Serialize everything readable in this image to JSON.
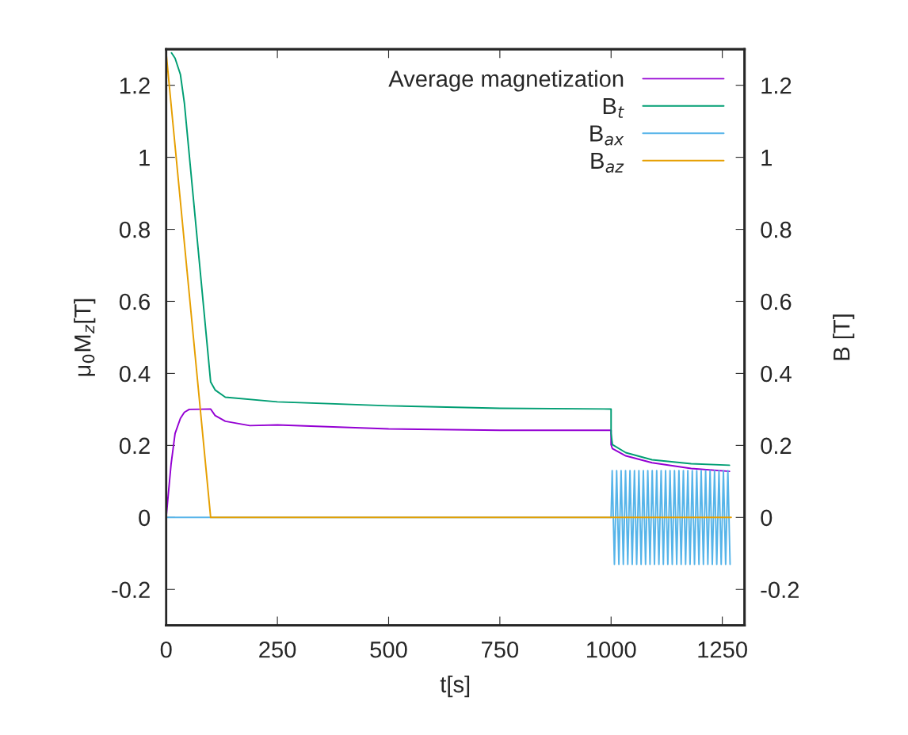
{
  "chart_data": {
    "type": "line",
    "xlabel": "t[s]",
    "ylabel": "μ$_{0}$M$_{z}$[T]",
    "y2label": "B [T]",
    "xlim": [
      0,
      1300
    ],
    "xticks": [
      0,
      250,
      500,
      750,
      1000,
      1250
    ],
    "ylim": [
      -0.3,
      1.3
    ],
    "yticks": [
      -0.2,
      0,
      0.2,
      0.4,
      0.6,
      0.8,
      1,
      1.2
    ],
    "y2lim": [
      -0.3,
      1.3
    ],
    "y2ticks": [
      -0.2,
      0,
      0.2,
      0.4,
      0.6,
      0.8,
      1,
      1.2
    ],
    "legend": "top right",
    "grid": false,
    "line_style": "solid",
    "marker": "none",
    "series": [
      {
        "name": "Average magnetization",
        "color": "#9400d3",
        "x": [
          0,
          11,
          20,
          32,
          41,
          52,
          100,
          110,
          133,
          188,
          250,
          500,
          750,
          1000,
          1000,
          1003,
          1033,
          1092,
          1180,
          1266
        ],
        "values": [
          0,
          0.147,
          0.233,
          0.275,
          0.292,
          0.3,
          0.301,
          0.283,
          0.267,
          0.255,
          0.257,
          0.246,
          0.242,
          0.242,
          0.202,
          0.191,
          0.171,
          0.152,
          0.136,
          0.128
        ]
      },
      {
        "name": "B$_{t}$",
        "color": "#009e73",
        "x": [
          12,
          20,
          32,
          41,
          100,
          110,
          133,
          250,
          500,
          750,
          1000,
          1000,
          1003,
          1033,
          1092,
          1180,
          1266
        ],
        "values": [
          1.29,
          1.275,
          1.23,
          1.15,
          0.376,
          0.354,
          0.334,
          0.321,
          0.31,
          0.303,
          0.301,
          0.233,
          0.202,
          0.18,
          0.16,
          0.149,
          0.145
        ]
      },
      {
        "name": "B$_{ax}$",
        "color": "#56b4e9",
        "x": [
          0,
          1000,
          1002.5,
          1007.5,
          1012.5,
          1017.5,
          1022.5,
          1027.5,
          1032.5,
          1037.5,
          1042.5,
          1047.5,
          1052.5,
          1057.5,
          1062.5,
          1067.5,
          1072.5,
          1077.5,
          1082.5,
          1087.5,
          1092.5,
          1097.5,
          1102.5,
          1107.5,
          1112.5,
          1117.5,
          1122.5,
          1127.5,
          1132.5,
          1137.5,
          1142.5,
          1147.5,
          1152.5,
          1157.5,
          1162.5,
          1167.5,
          1172.5,
          1177.5,
          1182.5,
          1187.5,
          1192.5,
          1197.5,
          1202.5,
          1207.5,
          1212.5,
          1217.5,
          1222.5,
          1227.5,
          1232.5,
          1237.5,
          1242.5,
          1247.5,
          1252.5,
          1257.5,
          1262.5,
          1267.5
        ],
        "values": [
          0,
          0,
          0.13,
          -0.13,
          0.13,
          -0.13,
          0.13,
          -0.13,
          0.13,
          -0.13,
          0.13,
          -0.13,
          0.13,
          -0.13,
          0.13,
          -0.13,
          0.13,
          -0.13,
          0.13,
          -0.13,
          0.13,
          -0.13,
          0.13,
          -0.13,
          0.13,
          -0.13,
          0.13,
          -0.13,
          0.13,
          -0.13,
          0.13,
          -0.13,
          0.13,
          -0.13,
          0.13,
          -0.13,
          0.13,
          -0.13,
          0.13,
          -0.13,
          0.13,
          -0.13,
          0.13,
          -0.13,
          0.13,
          -0.13,
          0.13,
          -0.13,
          0.13,
          -0.13,
          0.13,
          -0.13,
          0.13,
          -0.13,
          0.13,
          -0.13
        ]
      },
      {
        "name": "B$_{az}$",
        "color": "#e69f00",
        "x": [
          0,
          100,
          1270
        ],
        "values": [
          1.29,
          0,
          0
        ]
      }
    ]
  }
}
